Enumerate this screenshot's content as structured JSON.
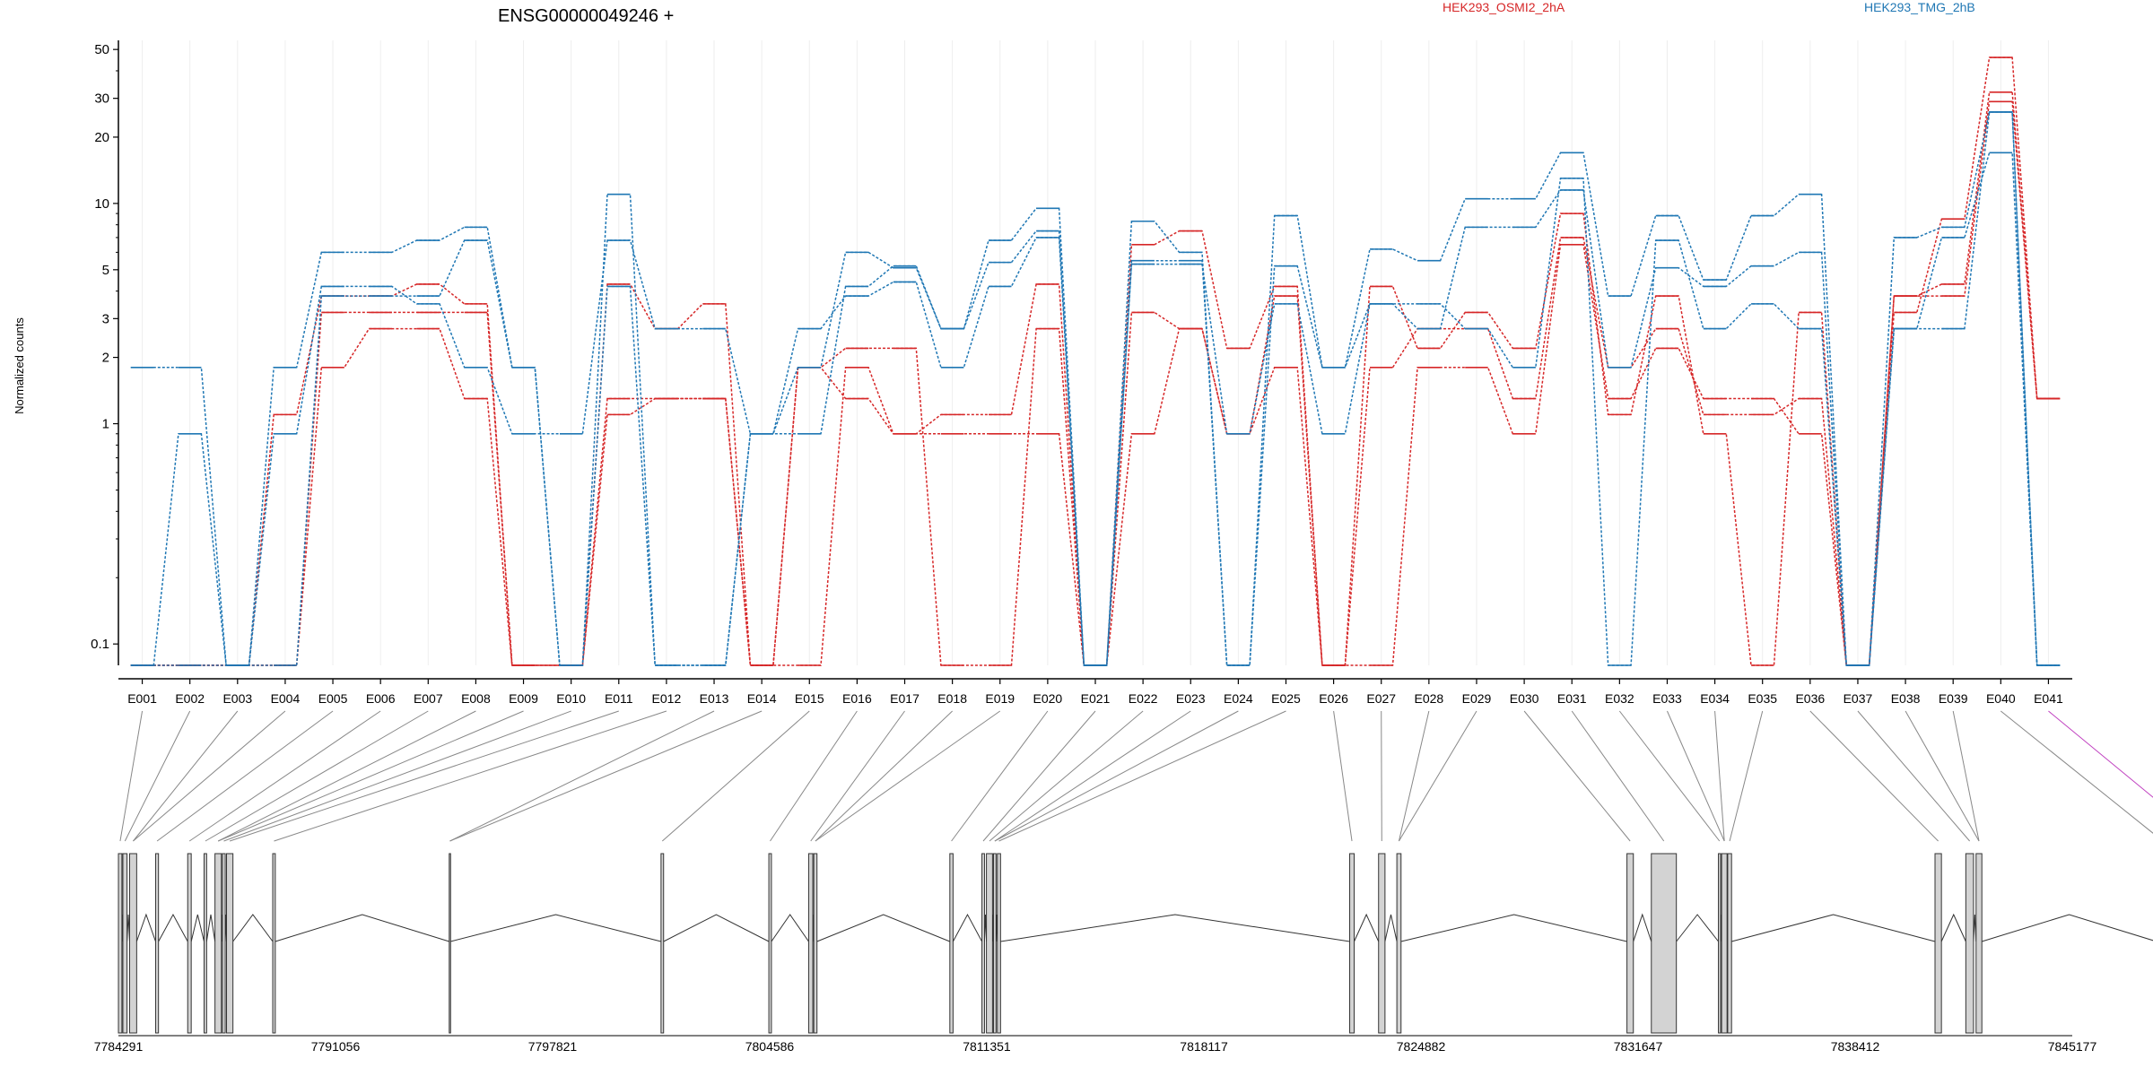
{
  "chart_data": {
    "type": "line",
    "title": "ENSG00000049246 +",
    "ylabel": "Normalized counts",
    "y_scale": "log",
    "ylim": [
      0.08,
      55
    ],
    "y_ticks": [
      0.1,
      1,
      2,
      3,
      5,
      10,
      20,
      30,
      50
    ],
    "y_tick_labels": [
      "0.1",
      "1",
      "2",
      "3",
      "5",
      "10",
      "20",
      "30",
      "50"
    ],
    "grid": true,
    "legend_position": "top-right",
    "legend": [
      {
        "label": "HEK293_OSMI2_2hA",
        "color": "#d62728"
      },
      {
        "label": "HEK293_TMG_2hB",
        "color": "#1f77b4"
      }
    ],
    "categories": [
      "E001",
      "E002",
      "E003",
      "E004",
      "E005",
      "E006",
      "E007",
      "E008",
      "E009",
      "E010",
      "E011",
      "E012",
      "E013",
      "E014",
      "E015",
      "E016",
      "E017",
      "E018",
      "E019",
      "E020",
      "E021",
      "E022",
      "E023",
      "E024",
      "E025",
      "E026",
      "E027",
      "E028",
      "E029",
      "E030",
      "E031",
      "E032",
      "E033",
      "E034",
      "E035",
      "E036",
      "E037",
      "E038",
      "E039",
      "E040",
      "E041"
    ],
    "series": [
      {
        "color": "#d62728",
        "values": [
          0.08,
          0.08,
          0.08,
          1.1,
          3.8,
          3.8,
          4.3,
          3.5,
          0.08,
          0.08,
          4.3,
          2.7,
          3.5,
          0.08,
          0.08,
          1.8,
          0.9,
          1.1,
          1.1,
          4.3,
          0.08,
          6.5,
          7.5,
          2.2,
          4.2,
          0.08,
          4.2,
          2.2,
          3.2,
          2.2,
          9.0,
          1.1,
          3.8,
          0.9,
          0.08,
          3.2,
          0.08,
          3.2,
          8.5,
          46,
          1.3
        ]
      },
      {
        "color": "#d62728",
        "values": [
          0.08,
          0.08,
          0.08,
          0.08,
          3.2,
          3.2,
          3.2,
          3.2,
          0.08,
          0.08,
          1.1,
          1.3,
          1.3,
          0.08,
          1.8,
          2.2,
          2.2,
          0.08,
          0.08,
          2.7,
          0.08,
          3.2,
          2.7,
          0.9,
          3.8,
          0.08,
          0.08,
          1.8,
          1.8,
          0.9,
          6.5,
          1.3,
          2.2,
          1.3,
          1.3,
          0.9,
          0.08,
          3.8,
          4.3,
          32,
          1.3
        ]
      },
      {
        "color": "#d62728",
        "values": [
          0.08,
          0.08,
          0.08,
          0.08,
          1.8,
          2.7,
          2.7,
          1.3,
          0.08,
          0.08,
          1.3,
          1.3,
          1.3,
          0.08,
          1.8,
          1.3,
          0.9,
          0.9,
          0.9,
          0.9,
          0.08,
          0.9,
          2.7,
          0.9,
          1.8,
          0.08,
          1.8,
          2.7,
          2.7,
          1.3,
          7.0,
          1.8,
          2.7,
          1.1,
          1.1,
          1.3,
          0.08,
          3.8,
          3.8,
          29,
          1.3
        ]
      },
      {
        "color": "#1f77b4",
        "values": [
          1.8,
          1.8,
          0.08,
          1.8,
          6.0,
          6.0,
          6.8,
          7.8,
          1.8,
          0.08,
          11,
          0.08,
          0.08,
          0.9,
          1.8,
          6.0,
          5.1,
          2.7,
          6.8,
          9.5,
          0.08,
          8.3,
          6.0,
          0.08,
          8.8,
          1.8,
          6.2,
          5.5,
          10.5,
          10.5,
          17,
          3.8,
          8.8,
          4.5,
          8.8,
          11,
          0.08,
          7.0,
          7.8,
          26,
          0.08
        ]
      },
      {
        "color": "#1f77b4",
        "values": [
          0.08,
          0.9,
          0.08,
          0.9,
          4.2,
          4.2,
          3.5,
          1.8,
          0.9,
          0.9,
          6.8,
          2.7,
          2.7,
          0.9,
          2.7,
          3.8,
          4.4,
          1.8,
          4.2,
          7.0,
          0.08,
          5.3,
          5.3,
          0.9,
          3.5,
          0.9,
          3.5,
          2.7,
          7.8,
          7.8,
          11.5,
          1.8,
          5.1,
          4.2,
          5.2,
          6.0,
          0.08,
          2.7,
          7.0,
          17,
          0.08
        ]
      },
      {
        "color": "#1f77b4",
        "values": [
          0.08,
          0.08,
          0.08,
          0.08,
          3.8,
          3.8,
          3.8,
          6.8,
          1.8,
          0.08,
          4.2,
          0.08,
          0.08,
          0.9,
          0.9,
          4.2,
          5.2,
          2.7,
          5.4,
          7.5,
          0.08,
          5.5,
          5.5,
          0.08,
          5.2,
          1.8,
          3.5,
          3.5,
          2.7,
          1.8,
          13,
          0.08,
          6.8,
          2.7,
          3.5,
          2.7,
          0.08,
          2.7,
          2.7,
          26,
          0.08
        ]
      }
    ],
    "genome_axis": {
      "tick_labels": [
        "7784291",
        "7791056",
        "7797821",
        "7804586",
        "7811351",
        "7818117",
        "7824882",
        "7831647",
        "7838412",
        "7845177"
      ]
    },
    "exon_track": {
      "exons": [
        {
          "start": 7784291,
          "end": 7784400,
          "highlight": false
        },
        {
          "start": 7784430,
          "end": 7784560,
          "highlight": false
        },
        {
          "start": 7784640,
          "end": 7784860,
          "highlight": false
        },
        {
          "start": 7785450,
          "end": 7785540,
          "highlight": false
        },
        {
          "start": 7786450,
          "end": 7786560,
          "highlight": false
        },
        {
          "start": 7786960,
          "end": 7787040,
          "highlight": false
        },
        {
          "start": 7787300,
          "end": 7787500,
          "highlight": false
        },
        {
          "start": 7787530,
          "end": 7787620,
          "highlight": false
        },
        {
          "start": 7787660,
          "end": 7787860,
          "highlight": false
        },
        {
          "start": 7789100,
          "end": 7789180,
          "highlight": false
        },
        {
          "start": 7794600,
          "end": 7794640,
          "highlight": false
        },
        {
          "start": 7801200,
          "end": 7801280,
          "highlight": false
        },
        {
          "start": 7804560,
          "end": 7804640,
          "highlight": false
        },
        {
          "start": 7805800,
          "end": 7805930,
          "highlight": false
        },
        {
          "start": 7805960,
          "end": 7806060,
          "highlight": false
        },
        {
          "start": 7810200,
          "end": 7810300,
          "highlight": false
        },
        {
          "start": 7811200,
          "end": 7811280,
          "highlight": false
        },
        {
          "start": 7811340,
          "end": 7811530,
          "highlight": false
        },
        {
          "start": 7811560,
          "end": 7811640,
          "highlight": false
        },
        {
          "start": 7811680,
          "end": 7811780,
          "highlight": false
        },
        {
          "start": 7822660,
          "end": 7822800,
          "highlight": false
        },
        {
          "start": 7823560,
          "end": 7823760,
          "highlight": false
        },
        {
          "start": 7824130,
          "end": 7824260,
          "highlight": false
        },
        {
          "start": 7831300,
          "end": 7831500,
          "highlight": false
        },
        {
          "start": 7832060,
          "end": 7832840,
          "highlight": false
        },
        {
          "start": 7834150,
          "end": 7834220,
          "highlight": false
        },
        {
          "start": 7834250,
          "end": 7834420,
          "highlight": false
        },
        {
          "start": 7834440,
          "end": 7834560,
          "highlight": false
        },
        {
          "start": 7840900,
          "end": 7841100,
          "highlight": false
        },
        {
          "start": 7841860,
          "end": 7842100,
          "highlight": false
        },
        {
          "start": 7842180,
          "end": 7842360,
          "highlight": false
        },
        {
          "start": 7847800,
          "end": 7848200,
          "highlight": false
        },
        {
          "start": 7848300,
          "end": 7850400,
          "highlight": true
        }
      ]
    }
  }
}
